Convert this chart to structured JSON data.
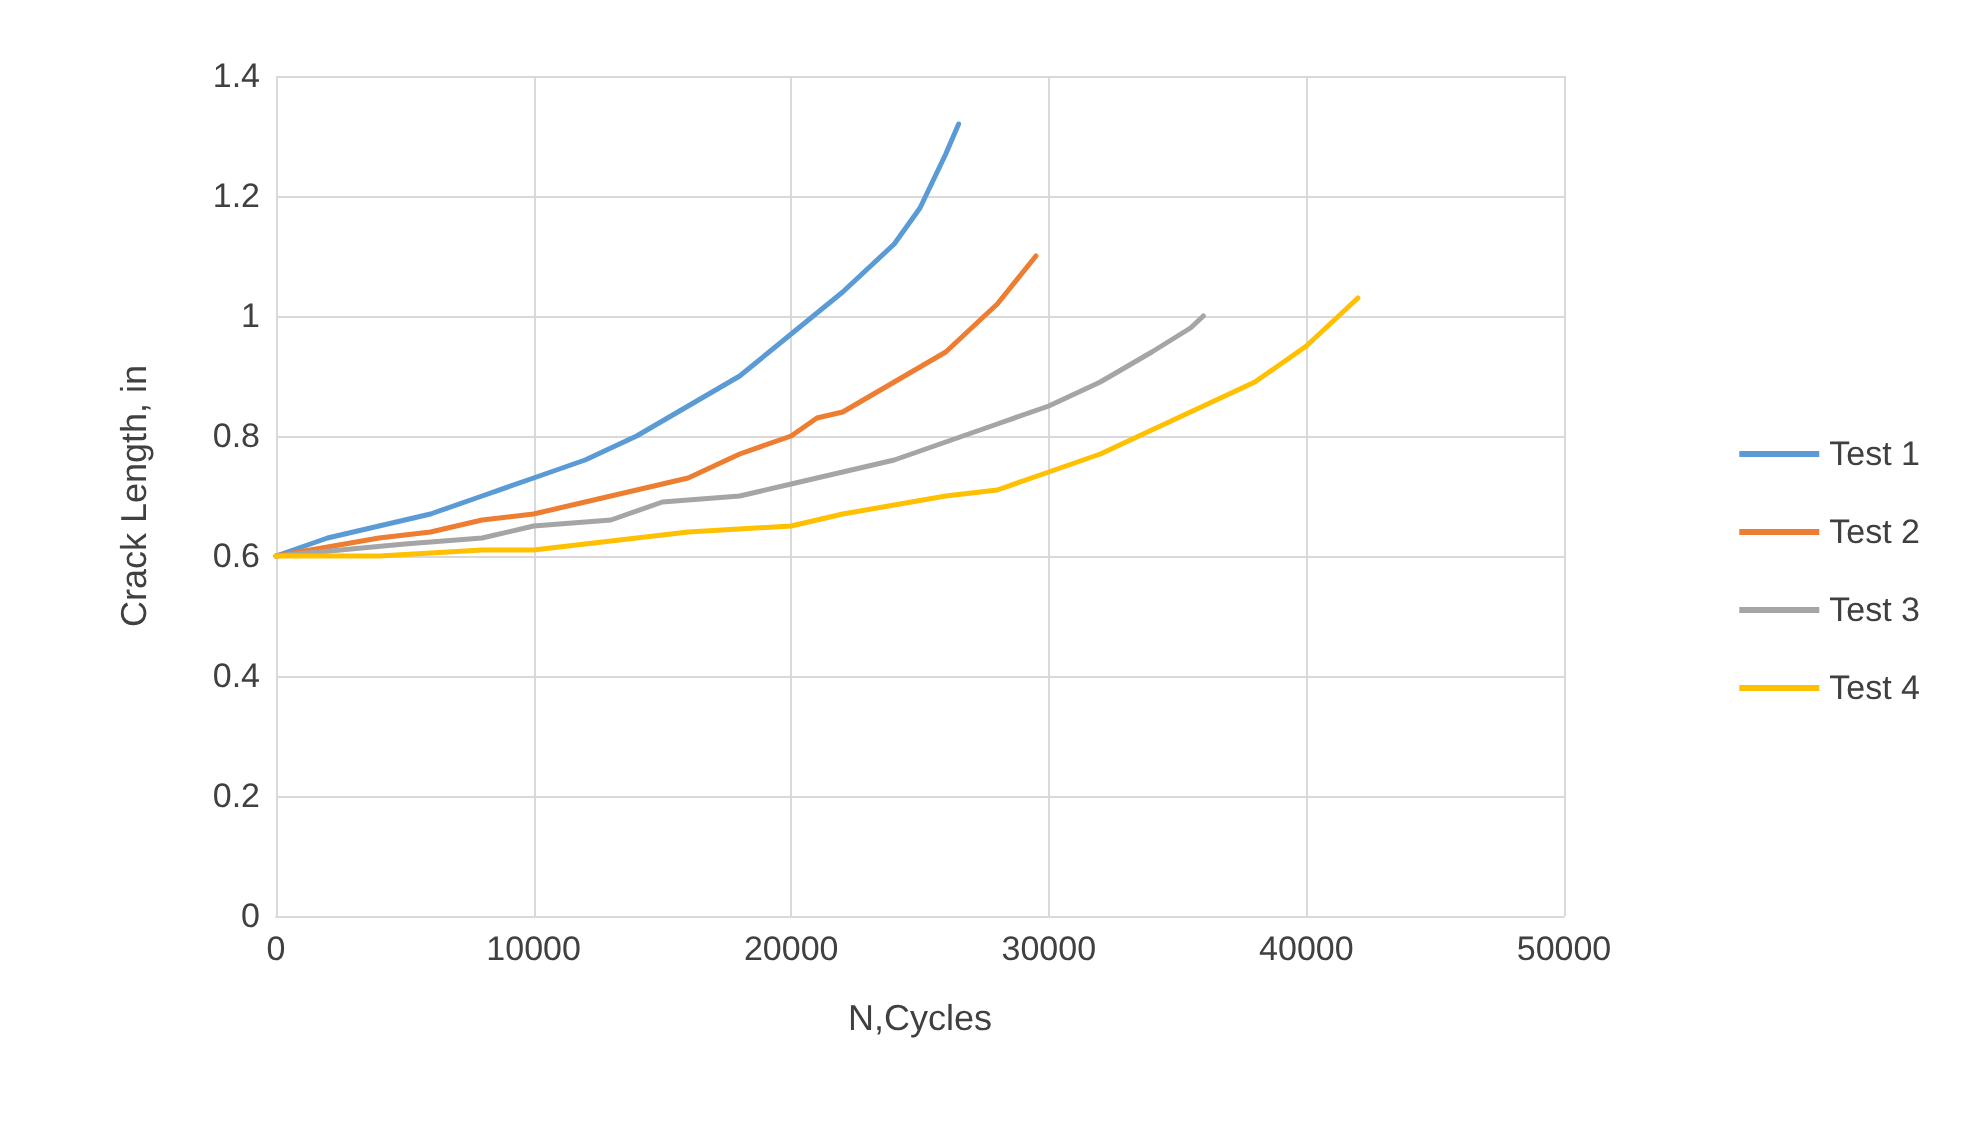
{
  "chart_data": {
    "type": "line",
    "xlabel": "N,Cycles",
    "ylabel": "Crack Length, in",
    "xlim": [
      0,
      50000
    ],
    "xticks": [
      0,
      10000,
      20000,
      30000,
      40000,
      50000
    ],
    "ylim": [
      0,
      1.4
    ],
    "yticks": [
      0,
      0.2,
      0.4,
      0.6,
      0.8,
      1,
      1.2,
      1.4
    ],
    "grid": true,
    "legend": "right",
    "marker": "none",
    "line_style": "solid",
    "series": [
      {
        "name": "Test 1",
        "color": "#5b9bd5",
        "x": [
          0,
          2000,
          4000,
          6000,
          8000,
          10000,
          12000,
          14000,
          16000,
          18000,
          20000,
          22000,
          24000,
          25000,
          26000,
          26500
        ],
        "values": [
          0.6,
          0.63,
          0.65,
          0.67,
          0.7,
          0.73,
          0.76,
          0.8,
          0.85,
          0.9,
          0.97,
          1.04,
          1.12,
          1.18,
          1.27,
          1.32
        ]
      },
      {
        "name": "Test 2",
        "color": "#ed7d31",
        "x": [
          0,
          4000,
          6000,
          8000,
          10000,
          12000,
          14000,
          16000,
          18000,
          20000,
          21000,
          22000,
          24000,
          26000,
          28000,
          29500
        ],
        "values": [
          0.6,
          0.63,
          0.64,
          0.66,
          0.67,
          0.69,
          0.71,
          0.73,
          0.77,
          0.8,
          0.83,
          0.84,
          0.89,
          0.94,
          1.02,
          1.1
        ]
      },
      {
        "name": "Test 3",
        "color": "#a5a5a5",
        "x": [
          0,
          5000,
          8000,
          10000,
          13000,
          15000,
          18000,
          20000,
          22000,
          24000,
          26000,
          28000,
          30000,
          32000,
          34000,
          35500,
          36000
        ],
        "values": [
          0.6,
          0.62,
          0.63,
          0.65,
          0.66,
          0.69,
          0.7,
          0.72,
          0.74,
          0.76,
          0.79,
          0.82,
          0.85,
          0.89,
          0.94,
          0.98,
          1.0
        ]
      },
      {
        "name": "Test 4",
        "color": "#ffc000",
        "x": [
          0,
          4000,
          8000,
          10000,
          12000,
          14000,
          16000,
          20000,
          22000,
          26000,
          28000,
          30000,
          32000,
          34000,
          36000,
          38000,
          40000,
          42000
        ],
        "values": [
          0.6,
          0.6,
          0.61,
          0.61,
          0.62,
          0.63,
          0.64,
          0.65,
          0.67,
          0.7,
          0.71,
          0.74,
          0.77,
          0.81,
          0.85,
          0.89,
          0.95,
          1.03
        ]
      }
    ]
  }
}
